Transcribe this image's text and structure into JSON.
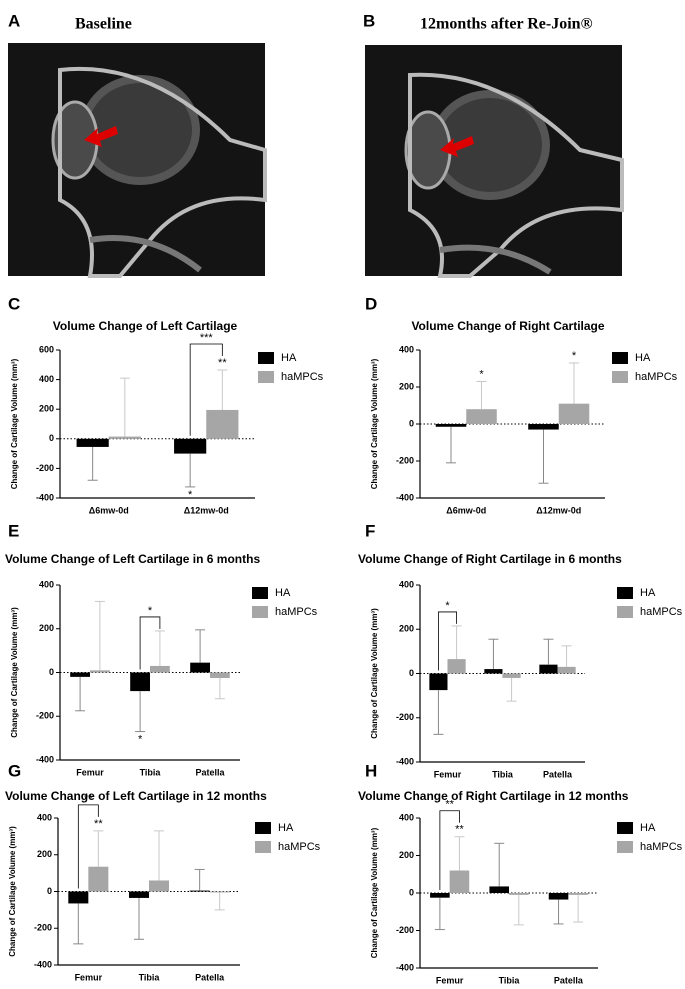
{
  "figure": {
    "panels": [
      {
        "letter": "A",
        "title": "Baseline"
      },
      {
        "letter": "B",
        "title": "12months after Re-Join®"
      }
    ]
  },
  "chart_data": [
    {
      "type": "bar",
      "label": "C",
      "title": "Volume Change of Left Cartilage",
      "y_label": "Change of Cartilage Volume (mm³)",
      "categories": [
        "Δ6mw-0d",
        "Δ12mw-0d"
      ],
      "series": [
        {
          "name": "HA",
          "color": "#000000",
          "error_color": "#888888",
          "values": [
            -55,
            -100
          ],
          "errors": [
            225,
            225
          ],
          "significance": [
            null,
            "*"
          ]
        },
        {
          "name": "haMPCs",
          "color": "#a6a6a6",
          "error_color": "#c8c8c8",
          "values": [
            15,
            195
          ],
          "errors": [
            395,
            270
          ],
          "significance": [
            null,
            "**"
          ]
        }
      ],
      "bracket_labels": [
        null,
        "***"
      ],
      "ylim": [
        -400,
        600
      ],
      "yticks": [
        -400,
        -200,
        0,
        200,
        400,
        600
      ],
      "legend": "upper right"
    },
    {
      "type": "bar",
      "label": "D",
      "title": "Volume Change of Right Cartilage",
      "y_label": "Change of Cartilage Volume (mm³)",
      "categories": [
        "Δ6mw-0d",
        "Δ12mw-0d"
      ],
      "series": [
        {
          "name": "HA",
          "color": "#000000",
          "error_color": "#888888",
          "values": [
            -15,
            -30
          ],
          "errors": [
            195,
            290
          ],
          "significance": [
            null,
            null
          ]
        },
        {
          "name": "haMPCs",
          "color": "#a6a6a6",
          "error_color": "#c8c8c8",
          "values": [
            80,
            110
          ],
          "errors": [
            150,
            220
          ],
          "significance": [
            "*",
            "*"
          ]
        }
      ],
      "bracket_labels": [
        null,
        null
      ],
      "ylim": [
        -400,
        400
      ],
      "yticks": [
        -400,
        -200,
        0,
        200,
        400
      ],
      "legend": "upper right"
    },
    {
      "type": "bar",
      "label": "E",
      "title": "Volume Change of Left Cartilage in 6 months",
      "y_label": "Change of Cartilage Volume (mm³)",
      "categories": [
        "Femur",
        "Tibia",
        "Patella"
      ],
      "series": [
        {
          "name": "HA",
          "color": "#000000",
          "error_color": "#888888",
          "values": [
            -20,
            -85,
            45
          ],
          "errors": [
            155,
            185,
            150
          ],
          "significance": [
            null,
            "*",
            null
          ]
        },
        {
          "name": "haMPCs",
          "color": "#a6a6a6",
          "error_color": "#c8c8c8",
          "values": [
            10,
            30,
            -25
          ],
          "errors": [
            315,
            160,
            95
          ],
          "significance": [
            null,
            null,
            null
          ]
        }
      ],
      "bracket_labels": [
        null,
        "*",
        null
      ],
      "ylim": [
        -400,
        400
      ],
      "yticks": [
        -400,
        -200,
        0,
        200,
        400
      ],
      "legend": "upper right"
    },
    {
      "type": "bar",
      "label": "F",
      "title": "Volume Change of Right Cartilage in 6 months",
      "y_label": "Change of Cartilage Volume (mm³)",
      "categories": [
        "Femur",
        "Tibia",
        "Patella"
      ],
      "series": [
        {
          "name": "HA",
          "color": "#000000",
          "error_color": "#888888",
          "values": [
            -75,
            20,
            40
          ],
          "errors": [
            200,
            135,
            115
          ],
          "significance": [
            null,
            null,
            null
          ]
        },
        {
          "name": "haMPCs",
          "color": "#a6a6a6",
          "error_color": "#c8c8c8",
          "values": [
            65,
            -20,
            30
          ],
          "errors": [
            150,
            105,
            95
          ],
          "significance": [
            null,
            null,
            null
          ]
        }
      ],
      "bracket_labels": [
        "*",
        null,
        null
      ],
      "ylim": [
        -400,
        400
      ],
      "yticks": [
        -400,
        -200,
        0,
        200,
        400
      ],
      "legend": "upper right"
    },
    {
      "type": "bar",
      "label": "G",
      "title": "Volume Change of Left Cartilage in 12 months",
      "y_label": "Change of Cartilage Volume (mm³)",
      "categories": [
        "Femur",
        "Tibia",
        "Patella"
      ],
      "series": [
        {
          "name": "HA",
          "color": "#000000",
          "error_color": "#888888",
          "values": [
            -65,
            -35,
            5
          ],
          "errors": [
            220,
            225,
            115
          ],
          "significance": [
            null,
            null,
            null
          ]
        },
        {
          "name": "haMPCs",
          "color": "#a6a6a6",
          "error_color": "#c8c8c8",
          "values": [
            135,
            60,
            -5
          ],
          "errors": [
            195,
            270,
            95
          ],
          "significance": [
            "**",
            null,
            null
          ]
        }
      ],
      "bracket_labels": [
        "**",
        null,
        null
      ],
      "ylim": [
        -400,
        400
      ],
      "yticks": [
        -400,
        -200,
        0,
        200,
        400
      ],
      "legend": "upper right"
    },
    {
      "type": "bar",
      "label": "H",
      "title": "Volume Change of Right Cartilage in 12 months",
      "y_label": "Change of Cartilage Volume (mm³)",
      "categories": [
        "Femur",
        "Tibia",
        "Patella"
      ],
      "series": [
        {
          "name": "HA",
          "color": "#000000",
          "error_color": "#888888",
          "values": [
            -25,
            35,
            -35
          ],
          "errors": [
            170,
            230,
            130
          ],
          "significance": [
            null,
            null,
            null
          ]
        },
        {
          "name": "haMPCs",
          "color": "#a6a6a6",
          "error_color": "#c8c8c8",
          "values": [
            120,
            -10,
            -10
          ],
          "errors": [
            180,
            160,
            145
          ],
          "significance": [
            "**",
            null,
            null
          ]
        }
      ],
      "bracket_labels": [
        "**",
        null,
        null
      ],
      "ylim": [
        -400,
        400
      ],
      "yticks": [
        -400,
        -200,
        0,
        200,
        400
      ],
      "legend": "upper right"
    }
  ]
}
